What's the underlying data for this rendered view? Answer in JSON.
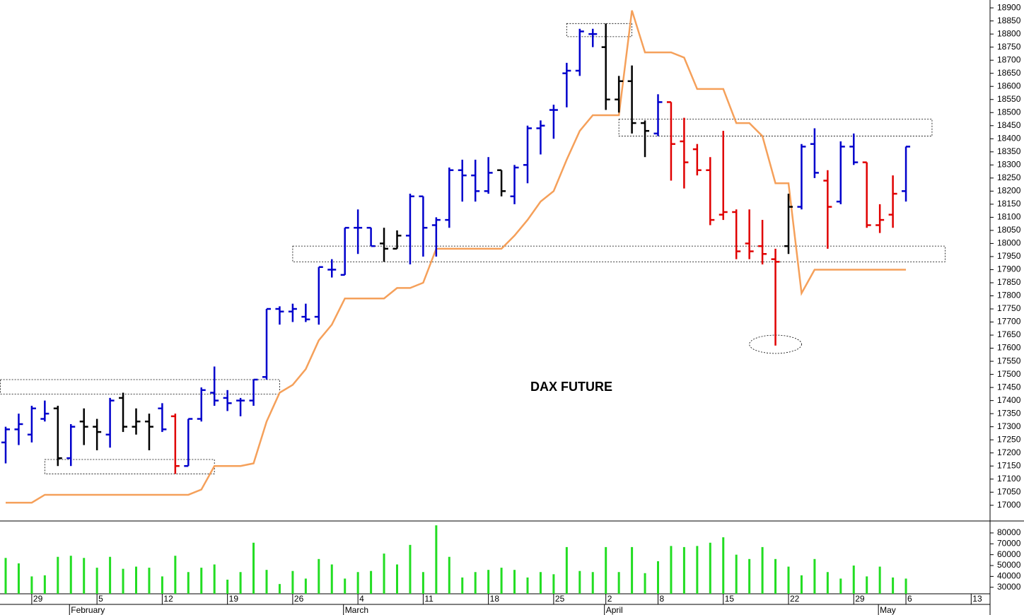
{
  "chart_data": [
    {
      "type": "ohlc",
      "title": "DAX FUTURE",
      "categories": [
        null,
        null,
        "29",
        null,
        null,
        null,
        null,
        "5",
        null,
        null,
        null,
        null,
        "12",
        null,
        null,
        null,
        null,
        "19",
        null,
        null,
        null,
        null,
        "26",
        null,
        null,
        null,
        null,
        "4",
        null,
        null,
        null,
        null,
        "11",
        null,
        null,
        null,
        null,
        "18",
        null,
        null,
        null,
        null,
        "25",
        null,
        null,
        null,
        "2",
        null,
        null,
        null,
        "8",
        null,
        null,
        null,
        null,
        "15",
        null,
        null,
        null,
        null,
        "22",
        null,
        null,
        null,
        null,
        "29",
        null,
        null,
        null,
        "6",
        null,
        null,
        null,
        null,
        "13"
      ],
      "months": [
        null,
        null,
        null,
        null,
        null,
        "February",
        null,
        null,
        null,
        null,
        null,
        null,
        null,
        null,
        null,
        null,
        null,
        null,
        null,
        null,
        null,
        null,
        null,
        null,
        null,
        null,
        "March",
        null,
        null,
        null,
        null,
        null,
        null,
        null,
        null,
        null,
        null,
        null,
        null,
        null,
        null,
        null,
        null,
        null,
        null,
        null,
        "April",
        null,
        null,
        null,
        null,
        null,
        null,
        null,
        null,
        null,
        null,
        null,
        null,
        null,
        null,
        null,
        null,
        null,
        null,
        null,
        null,
        "May",
        null,
        null,
        null,
        null,
        null,
        null,
        null
      ],
      "open": [
        17240,
        17290,
        17270,
        17330,
        17370,
        17180,
        17320,
        17300,
        17270,
        17410,
        17300,
        17320,
        17370,
        17340,
        17150,
        17330,
        17430,
        17410,
        17400,
        17400,
        17490,
        17750,
        17740,
        17720,
        17720,
        17900,
        17880,
        18060,
        18060,
        18000,
        17980,
        18030,
        18180,
        18070,
        18090,
        18280,
        18260,
        18200,
        18280,
        18180,
        18300,
        18440,
        18510,
        18650,
        18660,
        18800,
        18750,
        18550,
        18620,
        18460,
        18420,
        18540,
        18390,
        18360,
        18280,
        18110,
        18120,
        18000,
        17990,
        17940,
        17990,
        18140,
        18380,
        18240,
        18160,
        18370,
        18310,
        18070,
        18110,
        18200,
        null,
        null,
        null,
        null,
        null
      ],
      "high": [
        17300,
        17350,
        17380,
        17400,
        17380,
        17310,
        17370,
        17330,
        17410,
        17430,
        17370,
        17350,
        17390,
        17350,
        17330,
        17450,
        17530,
        17440,
        17410,
        17480,
        17750,
        17760,
        17770,
        17770,
        17910,
        17940,
        18060,
        18130,
        18060,
        18060,
        18050,
        18190,
        18180,
        18100,
        18290,
        18320,
        18320,
        18330,
        18280,
        18300,
        18450,
        18470,
        18530,
        18690,
        18820,
        18820,
        18840,
        18640,
        18680,
        18470,
        18570,
        18540,
        18480,
        18380,
        18330,
        18430,
        18130,
        18130,
        18090,
        17980,
        18190,
        18380,
        18440,
        18280,
        18390,
        18420,
        18310,
        18150,
        18260,
        18370,
        null,
        null,
        null,
        null,
        null
      ],
      "low": [
        17160,
        17230,
        17240,
        17320,
        17150,
        17150,
        17230,
        17210,
        17220,
        17280,
        17270,
        17210,
        17280,
        17120,
        17150,
        17320,
        17380,
        17360,
        17340,
        17380,
        17480,
        17690,
        17700,
        17700,
        17690,
        17870,
        17880,
        17960,
        17990,
        17930,
        17980,
        17920,
        17950,
        17950,
        18060,
        18160,
        18160,
        18190,
        18180,
        18150,
        18230,
        18340,
        18400,
        18520,
        18640,
        18750,
        18510,
        18500,
        18420,
        18330,
        18410,
        18240,
        18210,
        18260,
        18070,
        18090,
        17940,
        17940,
        17920,
        17610,
        17960,
        18130,
        18250,
        17980,
        18150,
        18300,
        18060,
        18040,
        18060,
        18160,
        null,
        null,
        null,
        null,
        null
      ],
      "close": [
        17290,
        17310,
        17370,
        17350,
        17180,
        17300,
        17300,
        17280,
        17400,
        17300,
        17320,
        17300,
        17290,
        17150,
        17330,
        17440,
        17400,
        17390,
        17400,
        17480,
        17750,
        17740,
        17750,
        17710,
        17910,
        17900,
        18060,
        18060,
        17990,
        17980,
        18030,
        18180,
        18060,
        18090,
        18280,
        18260,
        18200,
        18270,
        18200,
        18290,
        18440,
        18450,
        18510,
        18660,
        18810,
        18800,
        18550,
        18620,
        18460,
        18430,
        18540,
        18380,
        18310,
        18280,
        18090,
        18120,
        17970,
        17970,
        17960,
        17930,
        18140,
        18370,
        18270,
        18140,
        18370,
        18310,
        18070,
        18090,
        18190,
        18370,
        null,
        null,
        null,
        null,
        null
      ],
      "bar_colors": [
        "#0000cc",
        "#0000cc",
        "#0000cc",
        "#0000cc",
        "#000000",
        "#0000cc",
        "#000000",
        "#000000",
        "#0000cc",
        "#000000",
        "#000000",
        "#000000",
        "#0000cc",
        "#e00000",
        "#0000cc",
        "#0000cc",
        "#0000cc",
        "#0000cc",
        "#0000cc",
        "#0000cc",
        "#0000cc",
        "#0000cc",
        "#0000cc",
        "#0000cc",
        "#0000cc",
        "#0000cc",
        "#0000cc",
        "#0000cc",
        "#0000cc",
        "#000000",
        "#000000",
        "#0000cc",
        "#0000cc",
        "#0000cc",
        "#0000cc",
        "#0000cc",
        "#0000cc",
        "#0000cc",
        "#000000",
        "#0000cc",
        "#0000cc",
        "#0000cc",
        "#0000cc",
        "#0000cc",
        "#0000cc",
        "#0000cc",
        "#000000",
        "#000000",
        "#000000",
        "#000000",
        "#0000cc",
        "#e00000",
        "#e00000",
        "#e00000",
        "#e00000",
        "#e00000",
        "#e00000",
        "#e00000",
        "#e00000",
        "#e00000",
        "#000000",
        "#0000cc",
        "#0000cc",
        "#e00000",
        "#0000cc",
        "#0000cc",
        "#e00000",
        "#e00000",
        "#e00000",
        "#0000cc",
        null,
        null,
        null,
        null,
        null
      ],
      "line": {
        "color": "#f5a05a",
        "values": [
          17010,
          17010,
          17010,
          17040,
          17040,
          17040,
          17040,
          17040,
          17040,
          17040,
          17040,
          17040,
          17040,
          17040,
          17040,
          17060,
          17150,
          17150,
          17150,
          17160,
          17320,
          17430,
          17460,
          17520,
          17630,
          17690,
          17790,
          17790,
          17790,
          17790,
          17830,
          17830,
          17850,
          17980,
          17980,
          17980,
          17980,
          17980,
          17980,
          18030,
          18090,
          18160,
          18200,
          18320,
          18430,
          18490,
          18490,
          18490,
          18890,
          18730,
          18730,
          18730,
          18710,
          18590,
          18590,
          18590,
          18460,
          18460,
          18410,
          18230,
          18230,
          17810,
          17900,
          17900,
          17900,
          17900,
          17900,
          17900,
          17900,
          17900,
          null,
          null,
          null,
          null,
          null
        ]
      },
      "zones": [
        {
          "x": [
            -0.4,
            21
          ],
          "y": [
            17425,
            17480
          ]
        },
        {
          "x": [
            3,
            16
          ],
          "y": [
            17120,
            17175
          ]
        },
        {
          "x": [
            43,
            48
          ],
          "y": [
            18790,
            18840
          ]
        },
        {
          "x": [
            47,
            71
          ],
          "y": [
            18410,
            18475
          ]
        },
        {
          "x": [
            22,
            72
          ],
          "y": [
            17930,
            17990
          ]
        }
      ],
      "ellipse": {
        "x": [
          57,
          61
        ],
        "y": [
          17580,
          17650
        ]
      },
      "ylim": [
        16940,
        18930
      ],
      "yticks": [
        17000,
        17050,
        17100,
        17150,
        17200,
        17250,
        17300,
        17350,
        17400,
        17450,
        17500,
        17550,
        17600,
        17650,
        17700,
        17750,
        17800,
        17850,
        17900,
        17950,
        18000,
        18050,
        18100,
        18150,
        18200,
        18250,
        18300,
        18350,
        18400,
        18450,
        18500,
        18550,
        18600,
        18650,
        18700,
        18750,
        18800,
        18850,
        18900
      ]
    },
    {
      "type": "bar",
      "color": "#22dd22",
      "values": [
        57000,
        52000,
        40000,
        41000,
        58000,
        59000,
        57000,
        48000,
        58000,
        47000,
        49000,
        48000,
        40000,
        59000,
        44000,
        48000,
        51000,
        37000,
        44000,
        71000,
        46000,
        33000,
        45000,
        38000,
        56000,
        51000,
        38000,
        44000,
        45000,
        61000,
        51000,
        69000,
        44000,
        87000,
        58000,
        39000,
        44000,
        46000,
        48000,
        46000,
        39000,
        44000,
        42000,
        67000,
        45000,
        44000,
        67000,
        44000,
        67000,
        43000,
        54000,
        68000,
        67000,
        68000,
        71000,
        76000,
        60000,
        56000,
        67000,
        56000,
        49000,
        41000,
        56000,
        44000,
        38000,
        50000,
        40000,
        49000,
        39000,
        38000,
        null,
        null,
        null,
        null,
        null
      ],
      "ylim": [
        24000,
        91000
      ],
      "yticks": [
        30000,
        40000,
        50000,
        60000,
        70000,
        80000
      ]
    }
  ]
}
